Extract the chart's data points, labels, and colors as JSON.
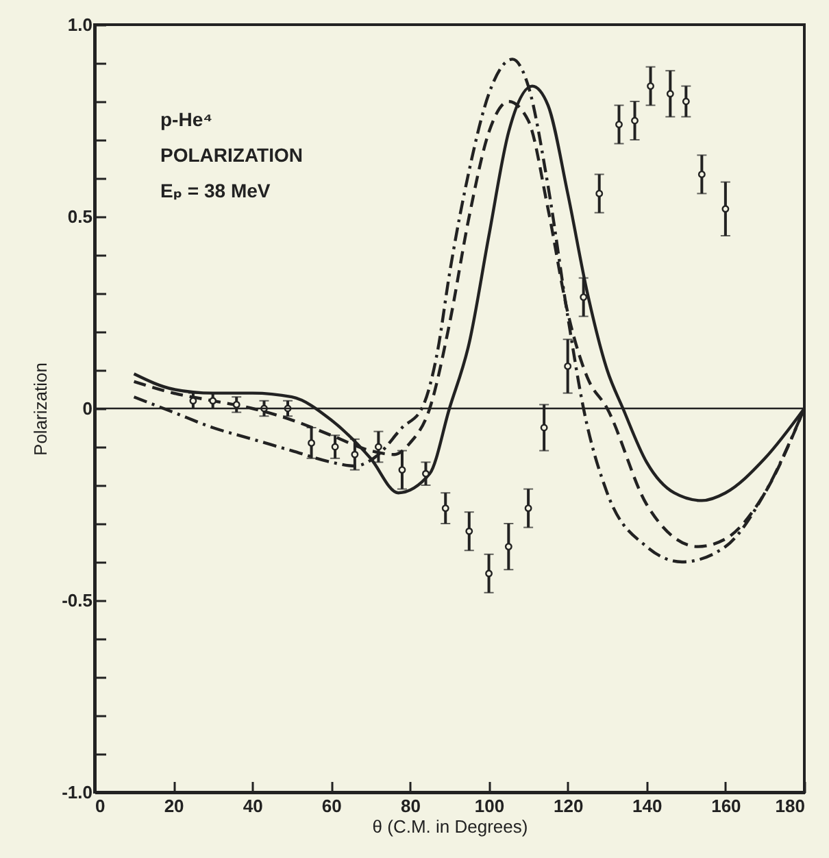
{
  "chart_data": {
    "type": "scatter",
    "xlabel": "θ (C.M. in Degrees)",
    "ylabel": "Polarization",
    "annotations": [
      "p-He⁴",
      "POLARIZATION",
      "Eₚ = 38 MeV"
    ],
    "xlim": [
      0,
      180
    ],
    "xticks": [
      0,
      20,
      40,
      60,
      80,
      100,
      120,
      140,
      160,
      180
    ],
    "ylim": [
      -1,
      1
    ],
    "yticks": [
      {
        "value": -1,
        "label": "-1.0"
      },
      {
        "value": -0.9,
        "label": null
      },
      {
        "value": -0.8,
        "label": null
      },
      {
        "value": -0.7,
        "label": null
      },
      {
        "value": -0.6,
        "label": null
      },
      -0.5,
      {
        "value": -0.4,
        "label": null
      },
      {
        "value": -0.3,
        "label": null
      },
      {
        "value": -0.2,
        "label": null
      },
      {
        "value": -0.1,
        "label": null
      },
      0,
      {
        "value": 0.1,
        "label": null
      },
      {
        "value": 0.2,
        "label": null
      },
      {
        "value": 0.3,
        "label": null
      },
      {
        "value": 0.4,
        "label": null
      },
      0.5,
      {
        "value": 0.6,
        "label": null
      },
      {
        "value": 0.7,
        "label": null
      },
      {
        "value": 0.8,
        "label": null
      },
      {
        "value": 0.9,
        "label": null
      },
      {
        "value": 1,
        "label": "1.0"
      }
    ],
    "ref_lines": [
      {
        "axis": "y",
        "value": 0,
        "color": "#222222"
      }
    ],
    "grid": false,
    "series": [
      {
        "color": "#222222",
        "marker": "circle",
        "x": [
          25,
          30,
          36,
          43,
          49,
          55,
          61,
          66,
          72,
          78,
          84,
          89,
          95,
          100,
          105,
          110,
          114,
          120,
          124,
          128,
          133,
          137,
          141,
          146,
          150,
          154,
          160
        ],
        "values": [
          0.02,
          0.02,
          0.01,
          0,
          0,
          -0.09,
          -0.1,
          -0.12,
          -0.1,
          -0.16,
          -0.17,
          -0.26,
          -0.32,
          -0.43,
          -0.36,
          -0.26,
          -0.05,
          0.11,
          0.29,
          0.56,
          0.74,
          0.75,
          0.84,
          0.82,
          0.8,
          0.61,
          0.52
        ],
        "errors": [
          0.02,
          0.02,
          0.02,
          0.02,
          0.02,
          0.04,
          0.03,
          0.04,
          0.04,
          0.05,
          0.03,
          0.04,
          0.05,
          0.05,
          0.06,
          0.05,
          0.06,
          0.07,
          0.05,
          0.05,
          0.05,
          0.05,
          0.05,
          0.06,
          0.04,
          0.05,
          0.07
        ]
      },
      {
        "type": "line",
        "color": "#222222",
        "line_style": "solid",
        "x": [
          10,
          20,
          30,
          40,
          50,
          60,
          70,
          77,
          85,
          90,
          95,
          100,
          105,
          111,
          115,
          120,
          125,
          130,
          134,
          140,
          147,
          154,
          160,
          170,
          180
        ],
        "values": [
          0.09,
          0.05,
          0.04,
          0.04,
          0.03,
          -0.03,
          -0.13,
          -0.22,
          -0.17,
          0,
          0.17,
          0.45,
          0.72,
          0.84,
          0.79,
          0.56,
          0.3,
          0.1,
          0,
          -0.14,
          -0.22,
          -0.24,
          -0.22,
          -0.13,
          0
        ]
      },
      {
        "type": "line",
        "color": "#222222",
        "line_style": "dashed",
        "x": [
          10,
          20,
          30,
          40,
          50,
          60,
          70,
          76,
          80,
          85,
          90,
          95,
          100,
          105,
          110,
          115,
          120,
          125,
          130,
          140,
          153,
          160,
          170,
          180
        ],
        "values": [
          0.07,
          0.04,
          0.02,
          0,
          -0.03,
          -0.07,
          -0.11,
          -0.12,
          -0.09,
          0,
          0.22,
          0.5,
          0.72,
          0.8,
          0.75,
          0.52,
          0.25,
          0.08,
          0,
          -0.25,
          -0.36,
          -0.34,
          -0.22,
          0
        ]
      },
      {
        "type": "line",
        "color": "#222222",
        "line_style": "dashdot",
        "x": [
          10,
          20,
          30,
          40,
          50,
          60,
          66,
          72,
          78,
          83,
          87,
          90,
          95,
          100,
          106,
          110,
          115,
          120,
          124,
          130,
          140,
          149,
          160,
          170,
          180
        ],
        "values": [
          0.03,
          -0.01,
          -0.05,
          -0.08,
          -0.11,
          -0.14,
          -0.15,
          -0.12,
          -0.05,
          0,
          0.15,
          0.35,
          0.62,
          0.82,
          0.91,
          0.84,
          0.58,
          0.24,
          0,
          -0.22,
          -0.36,
          -0.4,
          -0.36,
          -0.22,
          0
        ]
      }
    ]
  }
}
